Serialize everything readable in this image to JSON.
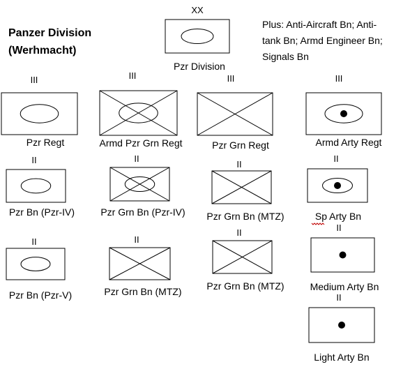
{
  "title_lines": [
    "Panzer Division",
    "(Werhmacht)"
  ],
  "note_lines": [
    "Plus: Anti-Aircraft Bn; Anti-",
    "tank Bn; Armd Engineer Bn;",
    "Signals Bn"
  ],
  "units": [
    {
      "id": "pzr-division",
      "echelon": "XX",
      "symbol": "armor",
      "label": "Pzr Division"
    },
    {
      "id": "pzr-regt",
      "echelon": "III",
      "symbol": "armor",
      "label": "Pzr Regt"
    },
    {
      "id": "armd-pzr-grn-regt",
      "echelon": "III",
      "symbol": "armored-infantry",
      "label": "Armd Pzr Grn Regt"
    },
    {
      "id": "pzr-grn-regt",
      "echelon": "III",
      "symbol": "infantry",
      "label": "Pzr Grn Regt"
    },
    {
      "id": "armd-arty-regt",
      "echelon": "III",
      "symbol": "sp-artillery",
      "label": "Armd Arty Regt"
    },
    {
      "id": "pzr-bn-pzr-iv",
      "echelon": "II",
      "symbol": "armor",
      "label": "Pzr Bn (Pzr-IV)"
    },
    {
      "id": "pzr-grn-bn-pzr-iv",
      "echelon": "II",
      "symbol": "armored-infantry",
      "label": "Pzr Grn Bn (Pzr-IV)"
    },
    {
      "id": "pzr-grn-bn-mtz-1",
      "echelon": "II",
      "symbol": "infantry",
      "label": "Pzr Grn Bn (MTZ)"
    },
    {
      "id": "sp-arty-bn",
      "echelon": "II",
      "symbol": "sp-artillery",
      "label": "Sp Arty Bn"
    },
    {
      "id": "pzr-bn-pzr-v",
      "echelon": "II",
      "symbol": "armor",
      "label": "Pzr Bn (Pzr-V)"
    },
    {
      "id": "pzr-grn-bn-mtz-2",
      "echelon": "II",
      "symbol": "infantry",
      "label": "Pzr Grn Bn (MTZ)"
    },
    {
      "id": "pzr-grn-bn-mtz-3",
      "echelon": "II",
      "symbol": "infantry",
      "label": "Pzr Grn Bn (MTZ)"
    },
    {
      "id": "medium-arty-bn",
      "echelon": "II",
      "symbol": "artillery",
      "label": "Medium Arty Bn"
    },
    {
      "id": "light-arty-bn",
      "echelon": "II",
      "symbol": "artillery",
      "label": "Light Arty Bn"
    }
  ]
}
